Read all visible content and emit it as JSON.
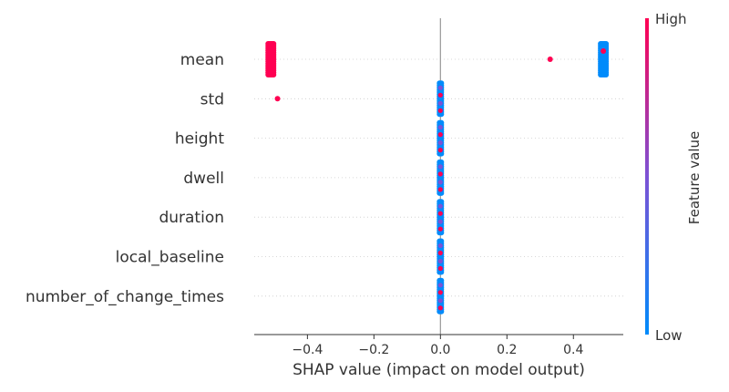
{
  "chart_data": {
    "type": "scatter",
    "subtype": "shap-beeswarm",
    "xlabel": "SHAP value (impact on model output)",
    "xlim": [
      -0.56,
      0.55
    ],
    "xticks": [
      -0.4,
      -0.2,
      0.0,
      0.2,
      0.4
    ],
    "xtick_labels": [
      "−0.4",
      "−0.2",
      "0.0",
      "0.2",
      "0.4"
    ],
    "features": [
      "mean",
      "std",
      "height",
      "dwell",
      "duration",
      "local_baseline",
      "number_of_change_times"
    ],
    "colorbar": {
      "title": "Feature value",
      "high_label": "High",
      "low_label": "Low",
      "low_color": "#008bfb",
      "high_color": "#ff0052"
    },
    "grid": false,
    "series": [
      {
        "feature": "mean",
        "points": [
          {
            "x": -0.51,
            "value": "high"
          },
          {
            "x": 0.33,
            "value": "high"
          },
          {
            "x": 0.49,
            "value": "low"
          },
          {
            "x": 0.49,
            "value": "high"
          }
        ]
      },
      {
        "feature": "std",
        "points": [
          {
            "x": -0.49,
            "value": "high"
          },
          {
            "x": 0.0,
            "value": "low"
          },
          {
            "x": 0.0,
            "value": "high"
          }
        ]
      },
      {
        "feature": "height",
        "points": [
          {
            "x": 0.0,
            "value": "low"
          },
          {
            "x": 0.0,
            "value": "high"
          }
        ]
      },
      {
        "feature": "dwell",
        "points": [
          {
            "x": 0.0,
            "value": "low"
          },
          {
            "x": 0.0,
            "value": "high"
          }
        ]
      },
      {
        "feature": "duration",
        "points": [
          {
            "x": 0.0,
            "value": "low"
          },
          {
            "x": 0.0,
            "value": "high"
          }
        ]
      },
      {
        "feature": "local_baseline",
        "points": [
          {
            "x": 0.0,
            "value": "low"
          },
          {
            "x": 0.0,
            "value": "high"
          }
        ]
      },
      {
        "feature": "number_of_change_times",
        "points": [
          {
            "x": 0.0,
            "value": "low"
          },
          {
            "x": 0.0,
            "value": "high"
          }
        ]
      }
    ]
  }
}
